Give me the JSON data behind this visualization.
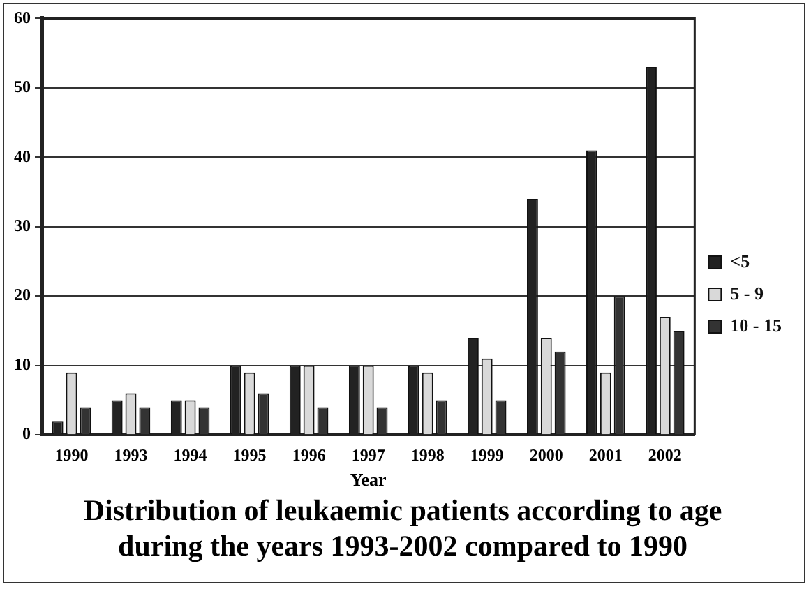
{
  "chart_data": {
    "type": "bar",
    "title": "Distribution of leukaemic patients according to age\nduring the years 1993-2002 compared to 1990",
    "xlabel": "Year",
    "categories": [
      "1990",
      "1993",
      "1994",
      "1995",
      "1996",
      "1997",
      "1998",
      "1999",
      "2000",
      "2001",
      "2002"
    ],
    "series": [
      {
        "name": "<5",
        "color": "#222222",
        "values": [
          2,
          5,
          5,
          10,
          10,
          10,
          10,
          14,
          34,
          41,
          53
        ]
      },
      {
        "name": "5 - 9",
        "color": "#d9d9d9",
        "values": [
          9,
          6,
          5,
          9,
          10,
          10,
          9,
          11,
          14,
          9,
          17
        ]
      },
      {
        "name": "10 - 15",
        "color": "#333333",
        "values": [
          4,
          4,
          4,
          6,
          4,
          4,
          5,
          5,
          12,
          20,
          15
        ]
      }
    ],
    "ylim": [
      0,
      60
    ],
    "yticks": [
      0,
      10,
      20,
      30,
      40,
      50,
      60
    ],
    "grid": "y",
    "legend": "right"
  }
}
